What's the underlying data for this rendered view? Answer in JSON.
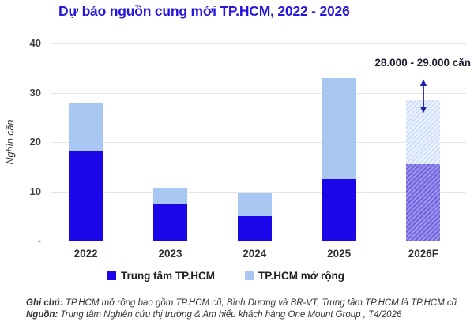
{
  "title": "Dự báo nguồn cung mới TP.HCM, 2022 - 2026",
  "chart_data": {
    "type": "bar",
    "stacked": true,
    "title": "Dự báo nguồn cung mới TP.HCM, 2022 - 2026",
    "ylabel": "Nghìn căn",
    "ylim": [
      0,
      40
    ],
    "grid": true,
    "legend_position": "bottom",
    "categories": [
      "2022",
      "2023",
      "2024",
      "2025",
      "2026F"
    ],
    "series": [
      {
        "name": "Trung tâm TP.HCM",
        "color": "#1b05e9",
        "values": [
          18.2,
          7.6,
          5.0,
          12.5,
          15.5
        ]
      },
      {
        "name": "TP.HCM mở rộng",
        "color": "#a8c8f3",
        "values": [
          9.8,
          3.1,
          4.7,
          20.5,
          13.0
        ]
      }
    ],
    "totals": [
      28.0,
      10.7,
      9.7,
      33.0,
      28.5
    ],
    "hatched_categories": [
      "2026F"
    ],
    "yticks": [
      {
        "value": 40,
        "label": "40"
      },
      {
        "value": 30,
        "label": "30"
      },
      {
        "value": 20,
        "label": "20"
      },
      {
        "value": 10,
        "label": "10"
      },
      {
        "value": 0,
        "label": "-"
      }
    ],
    "annotation": "28.000 - 29.000 căn"
  },
  "colors": {
    "title": "#2716de",
    "primary_bar": "#1b05e9",
    "secondary_bar": "#a8c8f3",
    "arrow": "#1d1dae",
    "gridline": "#e4e4e4"
  },
  "notes": {
    "ghi_chu_label": "Ghi chú:",
    "ghi_chu_text": "TP.HCM mở rộng bao gồm TP.HCM cũ, Bình Dương và BR-VT, Trung tâm TP.HCM là TP.HCM cũ.",
    "nguon_label": "Nguồn:",
    "nguon_text": "Trung tâm Nghiên cứu thị trường & Am hiểu khách hàng One Mount Group , T4/2026"
  }
}
